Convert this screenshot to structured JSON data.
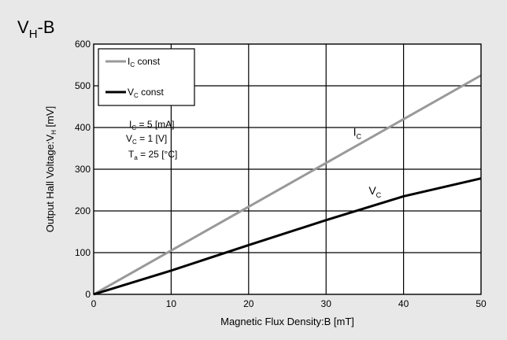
{
  "chart_data": {
    "type": "line",
    "title": "V",
    "title_sub": "H",
    "title_suffix": "-B",
    "xlabel": "Magnetic Flux Density:B [mT]",
    "ylabel": "Output Hall Voltage:V",
    "ylabel_sub": "H",
    "ylabel_suffix": " [mV]",
    "xlim": [
      0,
      50
    ],
    "ylim": [
      0,
      600
    ],
    "xticks": [
      0,
      10,
      20,
      30,
      40,
      50
    ],
    "yticks": [
      0,
      100,
      200,
      300,
      400,
      500,
      600
    ],
    "grid": true,
    "legend_position": "top-left",
    "series": [
      {
        "name": "I",
        "name_sub": "C",
        "name_suffix": " const",
        "color": "#999999",
        "label": "I",
        "label_sub": "C",
        "label_at": {
          "x": 33.5,
          "y": 380
        },
        "x": [
          0,
          10,
          20,
          30,
          40,
          50
        ],
        "y": [
          0,
          105,
          210,
          315,
          420,
          525
        ]
      },
      {
        "name": "V",
        "name_sub": "C",
        "name_suffix": " const",
        "color": "#000000",
        "label": "V",
        "label_sub": "C",
        "label_at": {
          "x": 35.5,
          "y": 240
        },
        "x": [
          0,
          10,
          20,
          30,
          40,
          50
        ],
        "y": [
          0,
          57,
          118,
          178,
          235,
          278
        ]
      }
    ],
    "conditions": [
      {
        "label": "I",
        "sub": "C",
        "eq": " = ",
        "value": "5",
        "unit": "[mA]"
      },
      {
        "label": "V",
        "sub": "C",
        "eq": " = ",
        "value": "1",
        "unit": "[V]"
      },
      {
        "label": "T",
        "sub": "a",
        "eq": " = ",
        "value": "25",
        "unit": "[°C]"
      }
    ]
  },
  "colors": {
    "background": "#e8e8e8",
    "plot_background": "#ffffff",
    "grid": "#000000"
  }
}
